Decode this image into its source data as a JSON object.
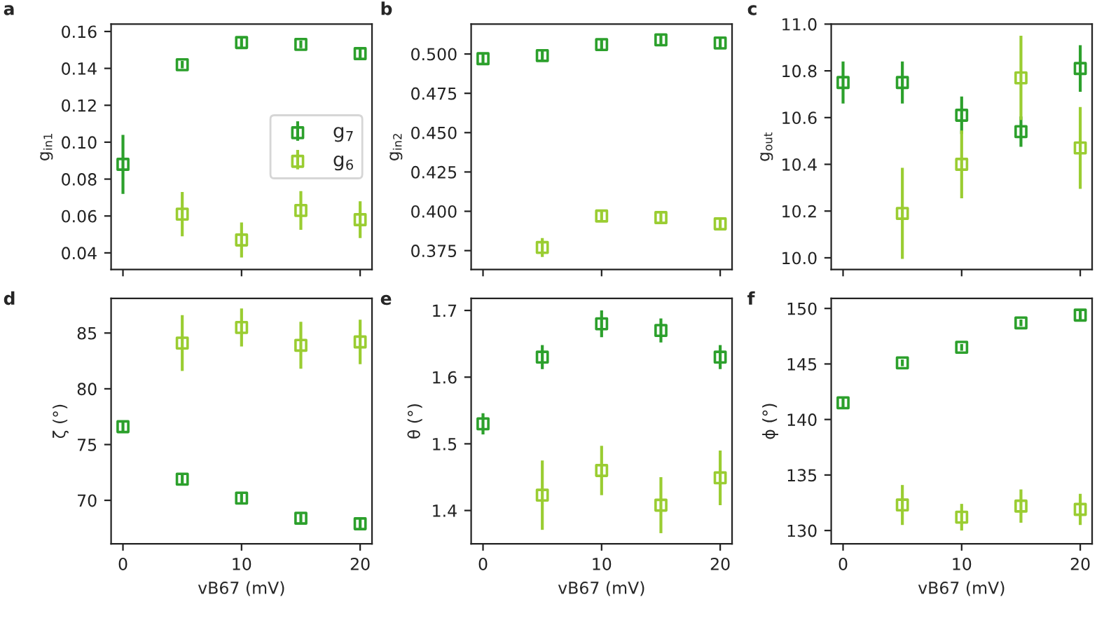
{
  "chart_data": [
    {
      "type": "scatter",
      "title": "a",
      "ylabel": "g$_{in1}$",
      "x": [
        0,
        5,
        10,
        15,
        20
      ],
      "marker": "square",
      "legend": "right",
      "tick_labels": "y",
      "xlim": [
        -1,
        21
      ],
      "xticks": [
        0,
        10,
        20
      ],
      "ylim": [
        0.031,
        0.164
      ],
      "yticks": [
        0.04,
        0.06,
        0.08,
        {
          "value": 0.1,
          "label": "0.10"
        },
        0.12,
        0.14,
        0.16
      ],
      "series": [
        {
          "name": "g$_{7}$",
          "color": "#2ca02c",
          "values": [
            0.088,
            0.142,
            0.154,
            0.153,
            0.148
          ],
          "errors": [
            0.016,
            0.002,
            0.003,
            0.002,
            0.003
          ]
        },
        {
          "name": "g$_{6}$",
          "color": "#9acd32",
          "values": [
            null,
            0.061,
            0.047,
            0.063,
            0.058
          ],
          "errors": [
            null,
            0.012,
            0.0095,
            0.0105,
            0.01
          ]
        }
      ]
    },
    {
      "type": "scatter",
      "title": "b",
      "ylabel": "g$_{in2}$",
      "x": [
        0,
        5,
        10,
        15,
        20
      ],
      "marker": "square",
      "tick_labels": "y",
      "xlim": [
        -1,
        21
      ],
      "xticks": [
        0,
        10,
        20
      ],
      "ylim": [
        0.363,
        0.519
      ],
      "yticks": [
        0.375,
        {
          "value": 0.4,
          "label": "0.400"
        },
        0.425,
        {
          "value": 0.45,
          "label": "0.450"
        },
        0.475,
        {
          "value": 0.5,
          "label": "0.500"
        }
      ],
      "series": [
        {
          "color": "#2ca02c",
          "values": [
            0.497,
            0.499,
            0.506,
            0.509,
            0.507
          ],
          "errors": [
            0.003,
            0.003,
            0.003,
            0.003,
            0.003
          ]
        },
        {
          "color": "#9acd32",
          "values": [
            null,
            0.377,
            0.397,
            0.396,
            0.392
          ],
          "errors": [
            null,
            0.006,
            0.003,
            0.004,
            0.004
          ]
        }
      ]
    },
    {
      "type": "scatter",
      "title": "c",
      "ylabel": "g$_{out}$",
      "x": [
        0,
        5,
        10,
        15,
        20
      ],
      "marker": "square",
      "tick_labels": "y",
      "xlim": [
        -1,
        21
      ],
      "xticks": [
        0,
        10,
        20
      ],
      "ylim": [
        9.95,
        11.0
      ],
      "yticks": [
        {
          "value": 10,
          "label": "10.0"
        },
        10.2,
        10.4,
        10.6,
        10.8,
        {
          "value": 11,
          "label": "11.0"
        }
      ],
      "series": [
        {
          "color": "#2ca02c",
          "values": [
            10.75,
            10.75,
            10.61,
            10.54,
            10.81
          ],
          "errors": [
            0.09,
            0.09,
            0.08,
            0.065,
            0.1
          ]
        },
        {
          "color": "#9acd32",
          "values": [
            null,
            10.19,
            10.4,
            10.77,
            10.47
          ],
          "errors": [
            null,
            0.195,
            0.145,
            0.18,
            0.175
          ]
        }
      ]
    },
    {
      "type": "scatter",
      "title": "d",
      "xlabel": "vB67 (mV)",
      "ylabel": "ζ (°)",
      "x": [
        0,
        5,
        10,
        15,
        20
      ],
      "marker": "square",
      "xlim": [
        -1,
        21
      ],
      "xticks": [
        0,
        10,
        20
      ],
      "ylim": [
        66.1,
        88.1
      ],
      "yticks": [
        70,
        75,
        80,
        85
      ],
      "series": [
        {
          "color": "#2ca02c",
          "values": [
            76.6,
            71.9,
            70.2,
            68.4,
            67.9
          ],
          "errors": [
            0.5,
            0.5,
            0.5,
            0.4,
            0.5
          ]
        },
        {
          "color": "#9acd32",
          "values": [
            null,
            84.1,
            85.5,
            83.9,
            84.2
          ],
          "errors": [
            null,
            2.5,
            1.7,
            2.1,
            2.0
          ]
        }
      ]
    },
    {
      "type": "scatter",
      "title": "e",
      "xlabel": "vB67 (mV)",
      "ylabel": "θ (°)",
      "x": [
        0,
        5,
        10,
        15,
        20
      ],
      "marker": "square",
      "xlim": [
        -1,
        21
      ],
      "xticks": [
        0,
        10,
        20
      ],
      "ylim": [
        1.35,
        1.718
      ],
      "yticks": [
        1.4,
        1.5,
        1.6,
        1.7
      ],
      "series": [
        {
          "color": "#2ca02c",
          "values": [
            1.53,
            1.63,
            1.68,
            1.67,
            1.63
          ],
          "errors": [
            0.016,
            0.018,
            0.02,
            0.018,
            0.018
          ]
        },
        {
          "color": "#9acd32",
          "values": [
            null,
            1.423,
            1.46,
            1.408,
            1.449
          ],
          "errors": [
            null,
            0.052,
            0.037,
            0.042,
            0.041
          ]
        }
      ]
    },
    {
      "type": "scatter",
      "title": "f",
      "xlabel": "vB67 (mV)",
      "ylabel": "ϕ (°)",
      "x": [
        0,
        5,
        10,
        15,
        20
      ],
      "marker": "square",
      "xlim": [
        -1,
        21
      ],
      "xticks": [
        0,
        10,
        20
      ],
      "ylim": [
        128.8,
        150.9
      ],
      "yticks": [
        130,
        135,
        140,
        145,
        150
      ],
      "series": [
        {
          "color": "#2ca02c",
          "values": [
            141.5,
            145.1,
            146.5,
            148.7,
            149.4
          ],
          "errors": [
            0.4,
            0.3,
            0.3,
            0.3,
            0.4
          ]
        },
        {
          "color": "#9acd32",
          "values": [
            null,
            132.3,
            131.2,
            132.2,
            131.9
          ],
          "errors": [
            null,
            1.8,
            1.2,
            1.5,
            1.4
          ]
        }
      ]
    }
  ]
}
